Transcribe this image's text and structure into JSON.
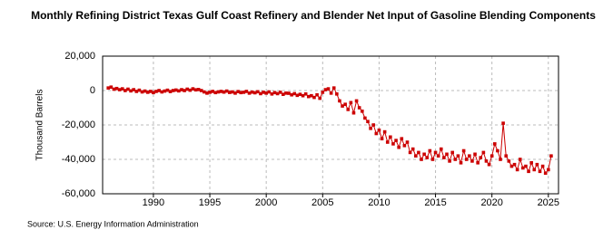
{
  "chart_data": {
    "type": "line",
    "title": "Monthly Refining District Texas Gulf Coast Refinery and Blender Net Input of Gasoline Blending Components",
    "ylabel": "Thousand Barrels",
    "source": "Source: U.S. Energy Information Administration",
    "x": [
      1986,
      1986.25,
      1986.5,
      1986.75,
      1987,
      1987.25,
      1987.5,
      1987.75,
      1988,
      1988.25,
      1988.5,
      1988.75,
      1989,
      1989.25,
      1989.5,
      1989.75,
      1990,
      1990.25,
      1990.5,
      1990.75,
      1991,
      1991.25,
      1991.5,
      1991.75,
      1992,
      1992.25,
      1992.5,
      1992.75,
      1993,
      1993.25,
      1993.5,
      1993.75,
      1994,
      1994.25,
      1994.5,
      1994.75,
      1995,
      1995.25,
      1995.5,
      1995.75,
      1996,
      1996.25,
      1996.5,
      1996.75,
      1997,
      1997.25,
      1997.5,
      1997.75,
      1998,
      1998.25,
      1998.5,
      1998.75,
      1999,
      1999.25,
      1999.5,
      1999.75,
      2000,
      2000.25,
      2000.5,
      2000.75,
      2001,
      2001.25,
      2001.5,
      2001.75,
      2002,
      2002.25,
      2002.5,
      2002.75,
      2003,
      2003.25,
      2003.5,
      2003.75,
      2004,
      2004.25,
      2004.5,
      2004.75,
      2005,
      2005.25,
      2005.5,
      2005.75,
      2006,
      2006.25,
      2006.5,
      2006.75,
      2007,
      2007.25,
      2007.5,
      2007.75,
      2008,
      2008.25,
      2008.5,
      2008.75,
      2009,
      2009.25,
      2009.5,
      2009.75,
      2010,
      2010.25,
      2010.5,
      2010.75,
      2011,
      2011.25,
      2011.5,
      2011.75,
      2012,
      2012.25,
      2012.5,
      2012.75,
      2013,
      2013.25,
      2013.5,
      2013.75,
      2014,
      2014.25,
      2014.5,
      2014.75,
      2015,
      2015.25,
      2015.5,
      2015.75,
      2016,
      2016.25,
      2016.5,
      2016.75,
      2017,
      2017.25,
      2017.5,
      2017.75,
      2018,
      2018.25,
      2018.5,
      2018.75,
      2019,
      2019.25,
      2019.5,
      2019.75,
      2020,
      2020.25,
      2020.5,
      2020.75,
      2021,
      2021.25,
      2021.5,
      2021.75,
      2022,
      2022.25,
      2022.5,
      2022.75,
      2023,
      2023.25,
      2023.5,
      2023.75,
      2024,
      2024.25,
      2024.5,
      2024.75,
      2025,
      2025.25
    ],
    "series": [
      {
        "name": "Texas Gulf Coast",
        "color": "#cc0000",
        "values": [
          1500,
          2000,
          800,
          1200,
          500,
          1000,
          0,
          800,
          -200,
          500,
          -500,
          200,
          -800,
          -300,
          -1000,
          -500,
          -1200,
          -500,
          0,
          -800,
          -300,
          200,
          -600,
          0,
          300,
          -200,
          500,
          0,
          800,
          200,
          1000,
          400,
          600,
          0,
          -800,
          -1500,
          -1000,
          -500,
          -1200,
          -800,
          -500,
          -900,
          -300,
          -1100,
          -800,
          -1500,
          -600,
          -1200,
          -1000,
          -500,
          -1500,
          -900,
          -1300,
          -700,
          -1800,
          -1000,
          -1500,
          -800,
          -2000,
          -1200,
          -1800,
          -1000,
          -2200,
          -1500,
          -1600,
          -2500,
          -1800,
          -2800,
          -2200,
          -3000,
          -2000,
          -3500,
          -3000,
          -4000,
          -2500,
          -4500,
          -1000,
          500,
          1000,
          -1500,
          1500,
          -2000,
          -6000,
          -9000,
          -8000,
          -11000,
          -7000,
          -13000,
          -6000,
          -10000,
          -12000,
          -16000,
          -18000,
          -22000,
          -20000,
          -25000,
          -23000,
          -28000,
          -24000,
          -30000,
          -27000,
          -31000,
          -29000,
          -33000,
          -28000,
          -32000,
          -30000,
          -36000,
          -34000,
          -38000,
          -36000,
          -40000,
          -37000,
          -39000,
          -35000,
          -40000,
          -36000,
          -38000,
          -34000,
          -39000,
          -37000,
          -41000,
          -36000,
          -40000,
          -38000,
          -42000,
          -35000,
          -40000,
          -38000,
          -41000,
          -37000,
          -42000,
          -39000,
          -36000,
          -41000,
          -43000,
          -38000,
          -31000,
          -35000,
          -40000,
          -19000,
          -38000,
          -41000,
          -44000,
          -43000,
          -46000,
          -40000,
          -45000,
          -44000,
          -47000,
          -42000,
          -46000,
          -43000,
          -47000,
          -44000,
          -48000,
          -46000,
          -38000
        ]
      }
    ],
    "xlim": [
      1985.5,
      2025.9
    ],
    "xticks": [
      1990,
      1995,
      2000,
      2005,
      2010,
      2015,
      2020,
      2025
    ],
    "ylim": [
      -60000,
      20000
    ],
    "yticks": [
      {
        "value": -60000,
        "label": "-60,000"
      },
      {
        "value": -40000,
        "label": "-40,000"
      },
      {
        "value": -20000,
        "label": "-20,000"
      },
      {
        "value": 0,
        "label": "0"
      },
      {
        "value": 20000,
        "label": "20,000"
      }
    ],
    "grid": true
  }
}
